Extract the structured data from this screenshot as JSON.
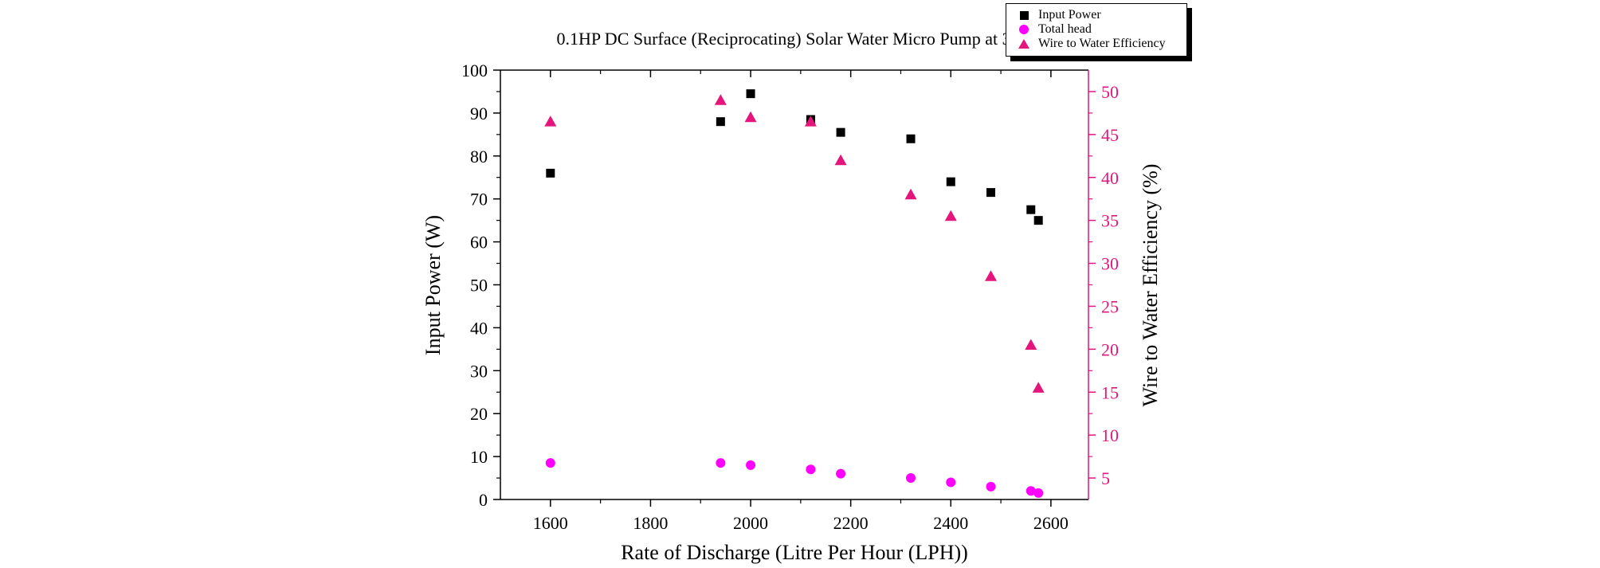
{
  "legend": {
    "items": [
      {
        "label": "Input Power",
        "marker": "square",
        "color": "#000000"
      },
      {
        "label": "Total head",
        "marker": "circle",
        "color": "#ff00ff"
      },
      {
        "label": "Wire to Water Efficiency",
        "marker": "triangle",
        "color": "#e4157b"
      }
    ]
  },
  "chart_data": {
    "type": "scatter",
    "title": "0.1HP DC Surface (Reciprocating) Solar Water Micro Pump at 36V",
    "xlabel": "Rate of Discharge (Litre Per Hour (LPH))",
    "ylabel_left": "Input Power (W)",
    "ylabel_right": "Wire to Water Efficiency (%)",
    "xlim": [
      1500,
      2675
    ],
    "xticks": [
      1600,
      1800,
      2000,
      2200,
      2400,
      2600
    ],
    "ylim_left": [
      0,
      100
    ],
    "yticks_left": [
      0,
      10,
      20,
      30,
      40,
      50,
      60,
      70,
      80,
      90,
      100
    ],
    "ylim_right": [
      2.5,
      52.5
    ],
    "yticks_right": [
      5,
      10,
      15,
      20,
      25,
      30,
      35,
      40,
      45,
      50
    ],
    "axis_colors": {
      "left": "#000000",
      "bottom": "#000000",
      "top": "#000000",
      "right": "#e4157b"
    },
    "grid": false,
    "legend_position": "top-right",
    "x": [
      1600,
      1940,
      2000,
      2120,
      2180,
      2320,
      2400,
      2480,
      2560,
      2575
    ],
    "series": [
      {
        "name": "Input Power",
        "axis": "left",
        "marker": "square",
        "color": "#000000",
        "values": [
          76,
          88,
          94.5,
          88.5,
          85.5,
          84,
          74,
          71.5,
          67.5,
          65
        ]
      },
      {
        "name": "Total head",
        "axis": "left",
        "marker": "circle",
        "color": "#ff00ff",
        "values": [
          8.5,
          8.5,
          8,
          7,
          6,
          5,
          4,
          3,
          2,
          1.5
        ]
      },
      {
        "name": "Wire to Water Efficiency",
        "axis": "right",
        "marker": "triangle",
        "color": "#e4157b",
        "values": [
          46.5,
          49,
          47,
          46.5,
          42,
          38,
          35.5,
          28.5,
          20.5,
          15.5
        ]
      }
    ]
  }
}
